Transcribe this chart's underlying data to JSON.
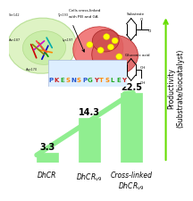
{
  "categories": [
    "DhCR",
    "DhCR$_{v9}$",
    "Cross-linked\nDhCR$_{v9}$"
  ],
  "values": [
    3.3,
    14.3,
    22.5
  ],
  "bar_color": "#90EE90",
  "value_labels": [
    "3.3",
    "14.3",
    "22.5"
  ],
  "ylabel": "Productivity\n(Substrate/biocatalyst)",
  "ylabel_fontsize": 5.5,
  "bar_width": 0.5,
  "tick_fontsize": 5.5,
  "value_fontsize": 7,
  "arrow_color": "#66dd00",
  "background_color": "#ffffff",
  "ylim": [
    0,
    30
  ],
  "protein_ellipse_color": "#c8f0a0",
  "protein_ellipse_edge": "#90d060",
  "cell_color1": "#f08080",
  "cell_color2": "#e06060",
  "cell_color3": "#cc4444",
  "yellow_dot": "#ffff00",
  "logo_bg": "#ddeeff",
  "seq_letters": [
    "P",
    "K",
    "E",
    "S",
    "N",
    "S",
    "P",
    "G",
    "Y",
    "T",
    "S",
    "L",
    "E",
    "Y"
  ],
  "seq_colors": [
    "#2255cc",
    "#cc2222",
    "#22aa22",
    "#ff8800",
    "#2255cc",
    "#ff8800",
    "#2255cc",
    "#22aa22",
    "#cc2222",
    "#ff8800",
    "#ff8800",
    "#22aa22",
    "#22aa22",
    "#cc2222"
  ]
}
